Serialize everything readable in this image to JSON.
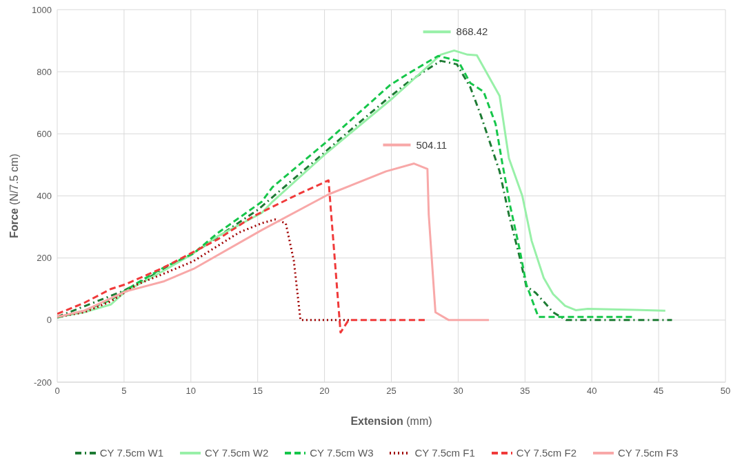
{
  "chart_data": {
    "type": "line",
    "xlabel": "Extension (mm)",
    "ylabel": "Force (N/7.5 cm)",
    "xlim": [
      0,
      50
    ],
    "xticks": [
      0,
      5,
      10,
      15,
      20,
      25,
      30,
      35,
      40,
      45,
      50
    ],
    "ylim": [
      -200,
      1000
    ],
    "yticks": [
      -200,
      0,
      200,
      400,
      600,
      800,
      1000
    ],
    "grid": true,
    "legend": "bottom",
    "marker": "none",
    "annotations": [
      {
        "text": "868.42",
        "x": 29.7,
        "y": 868.42
      },
      {
        "text": "504.11",
        "x": 26.7,
        "y": 504.11
      }
    ],
    "series": [
      {
        "name": "CY 7.5cm W1",
        "color": "#1e7b34",
        "line_style": "dashdot",
        "x": [
          0,
          5,
          10,
          15,
          20,
          21.5,
          24.6,
          26.3,
          28,
          28.7,
          29.9,
          30.9,
          31.7,
          32.4,
          33.1,
          33.8,
          34.6,
          35.1,
          35.8,
          36.6,
          37.1,
          38.1,
          46
        ],
        "values": [
          10,
          95,
          210,
          355,
          540,
          596,
          709,
          768,
          816,
          835,
          824,
          751,
          659,
          569,
          479,
          339,
          203,
          109,
          88,
          50,
          25,
          0,
          0
        ]
      },
      {
        "name": "CY 7.5cm W2",
        "color": "#98f0a8",
        "line_style": "solid",
        "x": [
          0,
          2,
          4,
          5.1,
          8,
          10,
          12,
          15.3,
          16.1,
          20,
          25.1,
          28.7,
          29.7,
          30.7,
          31.4,
          33.1,
          33.8,
          34.8,
          35.5,
          36.4,
          37.1,
          38,
          38.8,
          39.7,
          43.2,
          45.5
        ],
        "values": [
          10,
          25,
          50,
          92,
          160,
          210,
          270,
          345,
          381,
          533,
          715,
          855,
          868.42,
          855,
          853,
          722,
          521,
          400,
          255,
          136,
          84,
          46,
          32,
          36,
          33,
          30
        ]
      },
      {
        "name": "CY 7.5cm W3",
        "color": "#16c64a",
        "line_style": "dashed",
        "x": [
          0,
          2,
          4,
          6,
          8,
          10.2,
          12,
          15.3,
          16.1,
          20.2,
          24.9,
          26.3,
          28.5,
          30,
          30.9,
          31.9,
          32.8,
          33.3,
          33.9,
          34.6,
          35.1,
          36,
          43.1
        ],
        "values": [
          8,
          30,
          65,
          120,
          170,
          215,
          280,
          381,
          428,
          576,
          757,
          795,
          851,
          835,
          764,
          736,
          632,
          506,
          366,
          228,
          115,
          10,
          10
        ]
      },
      {
        "name": "CY 7.5cm F1",
        "color": "#a00000",
        "line_style": "dotted",
        "x": [
          0,
          2,
          4,
          6,
          8,
          10.2,
          13.6,
          15.3,
          16.3,
          17.1,
          17.7,
          18.2,
          22
        ],
        "values": [
          10,
          25,
          60,
          115,
          150,
          190,
          282,
          312,
          324,
          312,
          192,
          0,
          0
        ]
      },
      {
        "name": "CY 7.5cm F2",
        "color": "#f03a3a",
        "line_style": "dashed",
        "x": [
          0,
          2,
          4,
          5.1,
          8,
          10,
          12,
          14.7,
          18,
          20.3,
          21.2,
          21.8,
          27.5
        ],
        "values": [
          20,
          55,
          100,
          115,
          170,
          215,
          260,
          335,
          405,
          450,
          -40,
          0,
          0
        ]
      },
      {
        "name": "CY 7.5cm F3",
        "color": "#f8a8a8",
        "line_style": "solid",
        "x": [
          0,
          2,
          5.1,
          8,
          10.2,
          15.3,
          20.3,
          24.6,
          26.7,
          27.7,
          27.8,
          28.3,
          29.3,
          32.3
        ],
        "values": [
          10,
          30,
          92,
          125,
          165,
          290,
          405,
          479,
          504.11,
          487,
          339,
          25,
          0,
          0
        ]
      }
    ]
  }
}
